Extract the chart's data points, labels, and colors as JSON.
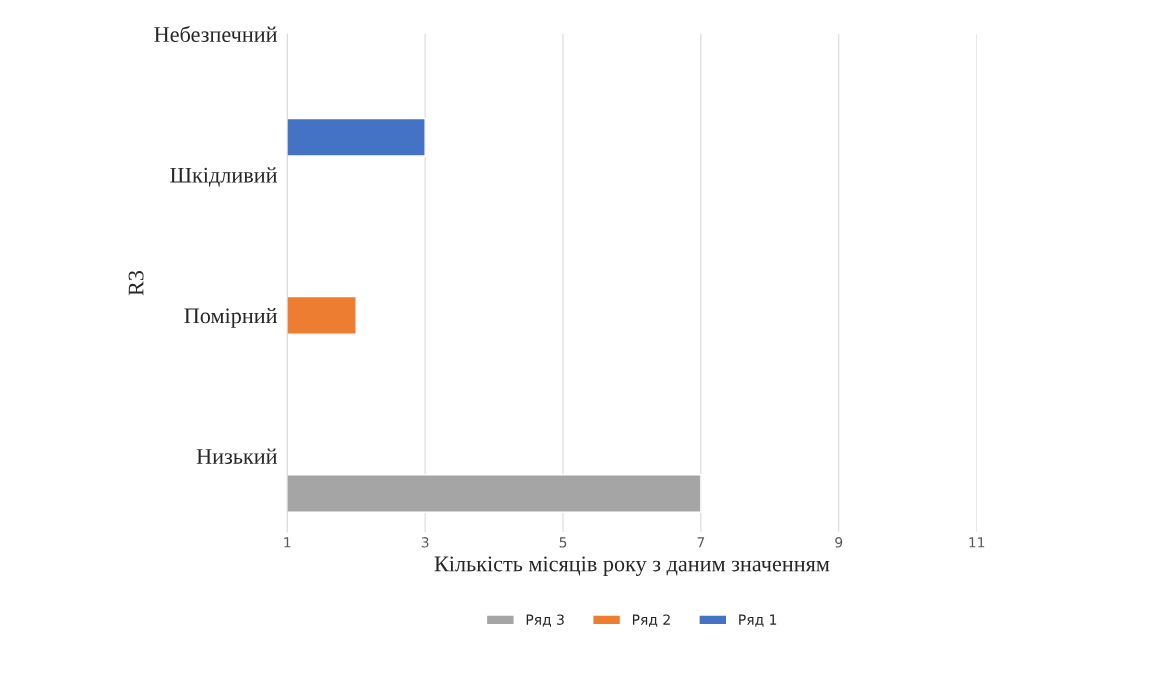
{
  "chart_data": {
    "type": "bar",
    "orientation": "horizontal",
    "categories": [
      "Небезпечний",
      "Шкідливий",
      "Помірний",
      "Низький"
    ],
    "series": [
      {
        "name": "Ряд 1",
        "color": "#4472c4",
        "values": [
          null,
          3,
          null,
          null
        ]
      },
      {
        "name": "Ряд 2",
        "color": "#ed7d31",
        "values": [
          null,
          null,
          2,
          null
        ]
      },
      {
        "name": "Ряд 3",
        "color": "#a5a5a5",
        "values": [
          null,
          null,
          null,
          7
        ]
      }
    ],
    "xlim": [
      1,
      11
    ],
    "xticks": [
      1,
      3,
      5,
      7,
      9,
      11
    ],
    "xlabel": "Кількість місяців року з даним значенням",
    "ylabel": "R3",
    "grid": "x",
    "legend": "bottom"
  }
}
